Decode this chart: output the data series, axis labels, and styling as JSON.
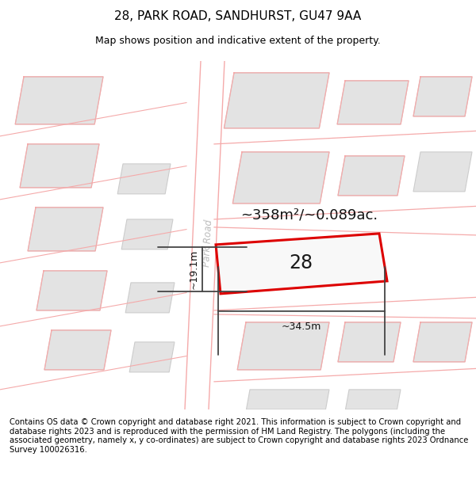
{
  "title": "28, PARK ROAD, SANDHURST, GU47 9AA",
  "subtitle": "Map shows position and indicative extent of the property.",
  "area_text": "~358m²/~0.089ac.",
  "width_text": "~34.5m",
  "height_text": "~19.1m",
  "number_label": "28",
  "footer": "Contains OS data © Crown copyright and database right 2021. This information is subject to Crown copyright and database rights 2023 and is reproduced with the permission of HM Land Registry. The polygons (including the associated geometry, namely x, y co-ordinates) are subject to Crown copyright and database rights 2023 Ordnance Survey 100026316.",
  "bg_color": "#ffffff",
  "map_bg": "#f2f2f2",
  "road_color": "#ffffff",
  "building_color": "#e3e3e3",
  "building_edge_color": "#cccccc",
  "plot_edge_color": "#dd0000",
  "plot_fill_color": "#f8f8f8",
  "dim_line_color": "#444444",
  "road_label_color": "#bbbbbb",
  "road_line_color": "#f5aaaa",
  "title_fontsize": 11,
  "subtitle_fontsize": 9,
  "footer_fontsize": 7.2
}
